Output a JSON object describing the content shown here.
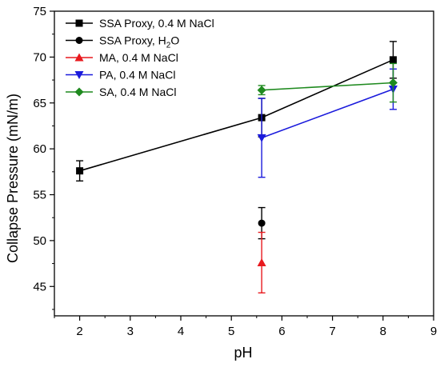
{
  "chart_data": {
    "type": "scatter",
    "title": "",
    "xlabel": "pH",
    "ylabel": "Collapse Pressure (mN/m)",
    "xlim": [
      1.5,
      9
    ],
    "ylim": [
      41.8,
      75
    ],
    "x_ticks": [
      2,
      3,
      4,
      5,
      6,
      7,
      8,
      9
    ],
    "y_ticks": [
      45,
      50,
      55,
      60,
      65,
      70,
      75
    ],
    "grid": false,
    "legend_position": "top-left",
    "series": [
      {
        "label_main": "SSA Proxy, 0.4 M NaCl",
        "label_sub": "",
        "label_tail": "",
        "color": "#000000",
        "marker": "square",
        "connected": true,
        "points": [
          {
            "x": 2.0,
            "y": 57.6,
            "err": 1.1
          },
          {
            "x": 5.6,
            "y": 63.4,
            "err": 2.1
          },
          {
            "x": 8.2,
            "y": 69.7,
            "err": 2.0
          }
        ]
      },
      {
        "label_main": "SSA Proxy, H",
        "label_sub": "2",
        "label_tail": "O",
        "color": "#000000",
        "marker": "circle",
        "connected": false,
        "points": [
          {
            "x": 5.6,
            "y": 51.9,
            "err": 1.7
          }
        ]
      },
      {
        "label_main": "MA, 0.4 M NaCl",
        "label_sub": "",
        "label_tail": "",
        "color": "#e8191e",
        "marker": "triangle-up",
        "connected": false,
        "points": [
          {
            "x": 5.6,
            "y": 47.6,
            "err": 3.3
          }
        ]
      },
      {
        "label_main": "PA, 0.4 M NaCl",
        "label_sub": "",
        "label_tail": "",
        "color": "#1a1adc",
        "marker": "triangle-down",
        "connected": true,
        "points": [
          {
            "x": 5.6,
            "y": 61.2,
            "err": 4.3
          },
          {
            "x": 8.2,
            "y": 66.5,
            "err": 2.2
          }
        ]
      },
      {
        "label_main": "SA, 0.4 M NaCl",
        "label_sub": "",
        "label_tail": "",
        "color": "#1f8a1f",
        "marker": "diamond",
        "connected": true,
        "points": [
          {
            "x": 5.6,
            "y": 66.4,
            "err": 0.5
          },
          {
            "x": 8.2,
            "y": 67.2,
            "err": 2.1
          }
        ]
      }
    ]
  }
}
